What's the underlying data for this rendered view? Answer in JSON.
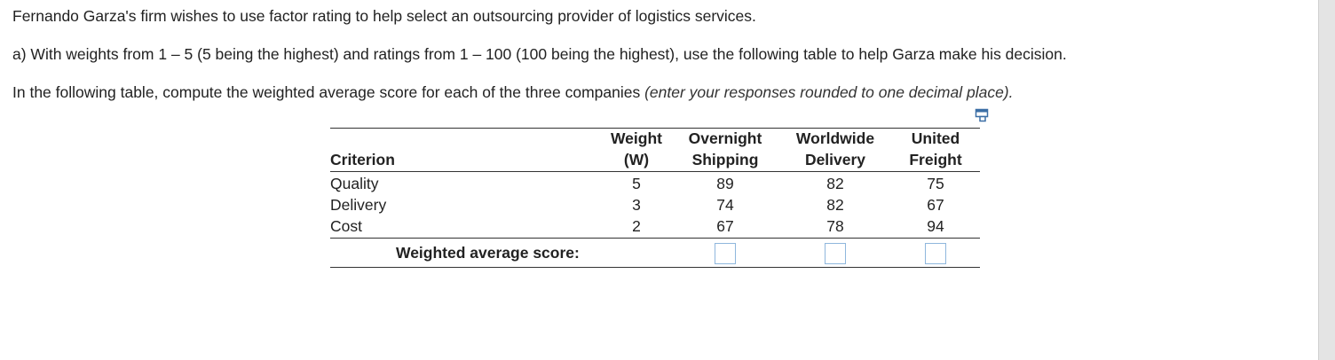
{
  "intro": "Fernando Garza's firm wishes to use factor rating to help select an outsourcing provider of logistics services.",
  "part_a": "a) With weights from 1  –  5 (5 being the highest) and ratings from 1  –  100 (100 being the highest), use the following table to help Garza make his decision.",
  "instruction": {
    "text": "In the following table, compute the weighted average score for each of the three companies ",
    "emphasis": "(enter your responses rounded to one decimal place)."
  },
  "table": {
    "headers": {
      "criterion": "Criterion",
      "weight_line1": "Weight",
      "weight_line2": "(W)",
      "c1_line1": "Overnight",
      "c1_line2": "Shipping",
      "c2_line1": "Worldwide",
      "c2_line2": "Delivery",
      "c3_line1": "United",
      "c3_line2": "Freight"
    },
    "rows": [
      {
        "criterion": "Quality",
        "weight": "5",
        "c1": "89",
        "c2": "82",
        "c3": "75"
      },
      {
        "criterion": "Delivery",
        "weight": "3",
        "c1": "74",
        "c2": "82",
        "c3": "67"
      },
      {
        "criterion": "Cost",
        "weight": "2",
        "c1": "67",
        "c2": "78",
        "c3": "94"
      }
    ],
    "score_label": "Weighted average score:",
    "score_inputs": [
      "",
      "",
      ""
    ]
  },
  "icons": {
    "copy": "copy-table-icon"
  }
}
